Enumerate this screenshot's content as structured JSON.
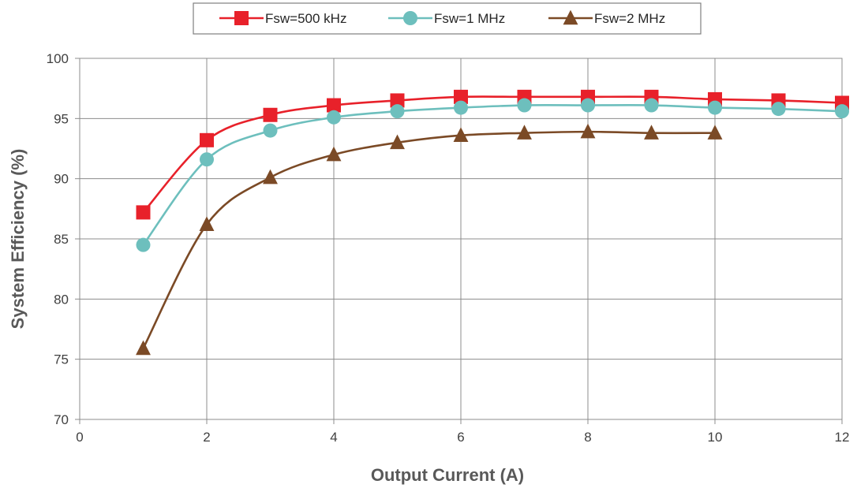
{
  "chart_data": {
    "type": "line",
    "title": "",
    "xlabel": "Output Current (A)",
    "ylabel": "System Efficiency (%)",
    "xlim": [
      0,
      12
    ],
    "ylim": [
      70,
      100
    ],
    "x_ticks": [
      "0",
      "2",
      "4",
      "6",
      "8",
      "10",
      "12"
    ],
    "y_ticks": [
      "70",
      "75",
      "80",
      "85",
      "90",
      "95",
      "100"
    ],
    "grid": true,
    "legend_position": "top-center",
    "series": [
      {
        "name": "Fsw=500 kHz",
        "color": "#e8212a",
        "marker": "square",
        "x": [
          1,
          2,
          3,
          4,
          5,
          6,
          7,
          8,
          9,
          10,
          11,
          12
        ],
        "y": [
          87.2,
          93.2,
          95.3,
          96.1,
          96.5,
          96.8,
          96.8,
          96.8,
          96.8,
          96.6,
          96.5,
          96.3
        ]
      },
      {
        "name": "Fsw=1 MHz",
        "color": "#6dbfbd",
        "marker": "circle",
        "x": [
          1,
          2,
          3,
          4,
          5,
          6,
          7,
          8,
          9,
          10,
          11,
          12
        ],
        "y": [
          84.5,
          91.6,
          94.0,
          95.1,
          95.6,
          95.9,
          96.1,
          96.1,
          96.1,
          95.9,
          95.8,
          95.6
        ]
      },
      {
        "name": "Fsw=2 MHz",
        "color": "#7b4a26",
        "marker": "triangle",
        "x": [
          1,
          2,
          3,
          4,
          5,
          6,
          7,
          8,
          9,
          10
        ],
        "y": [
          75.9,
          86.2,
          90.1,
          92.0,
          93.0,
          93.6,
          93.8,
          93.9,
          93.8,
          93.8
        ]
      }
    ]
  }
}
